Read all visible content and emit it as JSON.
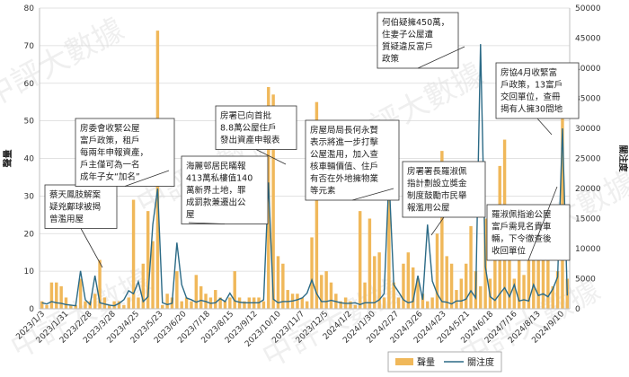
{
  "chart_data": {
    "type": "bar",
    "left_axis_title": "聲量",
    "right_axis_title": "關注度",
    "ylim_left": [
      0,
      80
    ],
    "ylim_right": [
      0,
      50000
    ],
    "yticks_left": [
      "0",
      "10",
      "20",
      "30",
      "40",
      "50",
      "60",
      "70",
      "80"
    ],
    "yticks_right": [
      "0",
      "5000",
      "10000",
      "15000",
      "20000",
      "25000",
      "30000",
      "35000",
      "40000",
      "45000",
      "50000"
    ],
    "x_tick_labels": [
      "2023/1/3",
      "2023/1/31",
      "2023/2/28",
      "2023/3/28",
      "2023/4/25",
      "2023/5/23",
      "2023/6/20",
      "2023/7/18",
      "2023/8/15",
      "2023/9/12",
      "2023/10/10",
      "2023/11/7",
      "2023/12/5",
      "2024/1/2",
      "2024/1/30",
      "2024/2/27",
      "2024/3/26",
      "2024/4/23",
      "2024/5/21",
      "2024/6/18",
      "2024/7/16",
      "2024/8/13",
      "2024/9/10"
    ],
    "series": [
      {
        "name": "聲量",
        "kind": "bar",
        "color": "#f0b85a",
        "values": [
          2,
          1,
          7,
          7,
          6,
          3,
          1,
          1,
          8,
          2,
          2,
          4,
          13,
          3,
          1,
          2,
          2,
          1,
          3,
          29,
          3,
          12,
          26,
          18,
          74,
          1,
          4,
          3,
          10,
          2,
          3,
          2,
          9,
          6,
          4,
          3,
          5,
          3,
          2,
          3,
          10,
          3,
          2,
          3,
          3,
          3,
          2,
          59,
          57,
          14,
          12,
          5,
          4,
          4,
          3,
          2,
          19,
          55,
          9,
          10,
          7,
          4,
          2,
          3,
          2,
          1,
          26,
          7,
          24,
          14,
          15,
          3,
          35,
          7,
          3,
          12,
          15,
          11,
          8,
          4,
          2,
          3,
          20,
          42,
          14,
          12,
          5,
          8,
          12,
          22,
          10,
          6,
          24,
          8,
          26,
          38,
          45,
          15,
          8,
          15,
          9,
          20,
          26,
          18,
          13,
          14,
          6,
          10,
          52,
          8
        ]
      },
      {
        "name": "關注度",
        "kind": "line",
        "color": "#2b6a86",
        "values": [
          1000,
          800,
          1200,
          1000,
          900,
          700,
          600,
          500,
          6300,
          1500,
          700,
          5500,
          1000,
          800,
          600,
          500,
          900,
          1500,
          3000,
          2500,
          4500,
          1200,
          2000,
          14000,
          20000,
          1000,
          700,
          900,
          11000,
          4000,
          1800,
          1500,
          1100,
          1400,
          1200,
          900,
          1000,
          1700,
          1200,
          2600,
          1300,
          1100,
          1000,
          1000,
          1000,
          1000,
          1500,
          21000,
          1600,
          1000,
          1200,
          1200,
          1300,
          1500,
          1800,
          2600,
          4800,
          2500,
          1200,
          1200,
          1400,
          1200,
          1000,
          900,
          900,
          1000,
          700,
          1000,
          1000,
          1000,
          1500,
          2500,
          22000,
          4000,
          2800,
          1500,
          1000,
          1200,
          5500,
          1500,
          14000,
          4600,
          2500,
          1200,
          1100,
          800,
          1300,
          1300,
          1600,
          3000,
          1800,
          44000,
          7000,
          2000,
          1400,
          2500,
          3500,
          2000,
          4000,
          1300,
          1500,
          1300,
          4000,
          2200,
          2500,
          2000,
          3300,
          5300,
          30000,
          2200
        ]
      }
    ],
    "annotations": [
      {
        "lines": [
          "蔡天鳳肢解案",
          "疑兇鄺球被揭",
          "曾濫用屋"
        ]
      },
      {
        "lines": [
          "房委會收緊公屋",
          "富戶政策，租戶",
          "每兩年申報資產，",
          "戶主僅可為一名",
          "成年子女“加名”"
        ]
      },
      {
        "lines": [
          "海麗邨居民瞞報",
          "413萬私樓值140",
          "萬新界土地，罪",
          "成罰款兼遷出公",
          "屋"
        ]
      },
      {
        "lines": [
          "房署已向首批",
          "8.8萬公屋住戶",
          "發出資產申報表"
        ]
      },
      {
        "lines": [
          "房屋局局長何永賢",
          "表示將進一步打擊",
          "公屋濫用，加入查",
          "核車輛價值、住戶",
          "有否在外地擁物業",
          "等元素"
        ]
      },
      {
        "lines": [
          "何伯疑擁450萬，",
          "住妻子公屋遭",
          "質疑違反富戶",
          "政策"
        ]
      },
      {
        "lines": [
          "房署署長羅淑佩",
          "指計劃設立獎金",
          "制度鼓勵市民舉",
          "報濫用公屋"
        ]
      },
      {
        "lines": [
          "房協4月收緊富",
          "戶政策，13富戶",
          "交回單位，查冊",
          "揭有人擁30間地"
        ]
      },
      {
        "lines": [
          "羅淑佩指逾公屋",
          "富戶需見名貴車",
          "輛，下令徹查後",
          "收回單位"
        ]
      }
    ],
    "legend": {
      "items": [
        "聲量",
        "關注度"
      ],
      "position": "bottom-right"
    },
    "watermark": "中評大數據"
  }
}
